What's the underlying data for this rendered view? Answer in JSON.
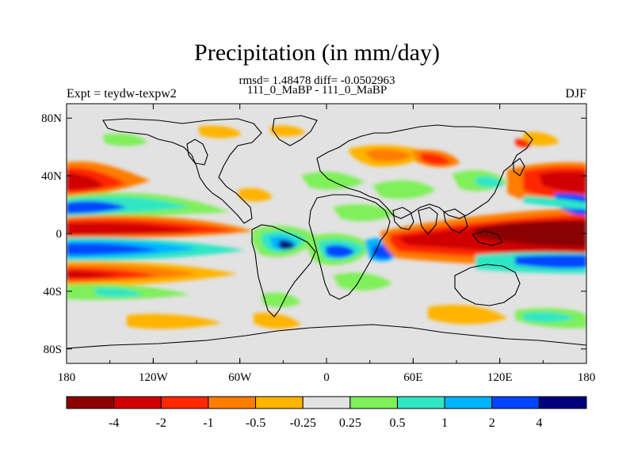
{
  "title": "Precipitation (in mm/day)",
  "stats_line": "rmsd= 1.48478 diff= -0.0502963",
  "subtitle": "111_0_MaBP - 111_0_MaBP",
  "experiment_label": "Expt = teydw-texpw2",
  "season": "DJF",
  "map": {
    "x_ticks": [
      "180",
      "120W",
      "60W",
      "0",
      "60E",
      "120E",
      "180"
    ],
    "y_ticks": [
      "80N",
      "40N",
      "0",
      "40S",
      "80S"
    ],
    "background_color": "#e2e2e2",
    "land_outline_color": "#000000"
  },
  "colorbar": {
    "colors": [
      "#8b0000",
      "#d10000",
      "#ff2800",
      "#ff7d00",
      "#ffb400",
      "#e2e2e2",
      "#7fef5a",
      "#2fe6c4",
      "#00b4ff",
      "#0046ff",
      "#00007f"
    ],
    "labels": [
      "-4",
      "-2",
      "-1",
      "-0.5",
      "-0.25",
      "0.25",
      "0.5",
      "1",
      "2",
      "4"
    ]
  }
}
